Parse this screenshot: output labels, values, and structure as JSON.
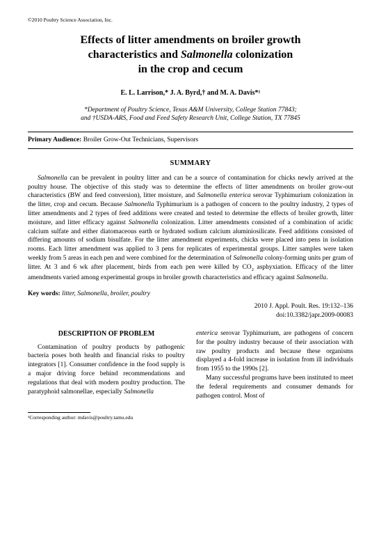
{
  "copyright": "©2010 Poultry Science Association, Inc.",
  "title_line1": "Effects of litter amendments on broiler growth",
  "title_line2a": "characteristics and ",
  "title_line2b": "Salmonella",
  "title_line2c": " colonization",
  "title_line3": "in the crop and cecum",
  "authors": "E. L. Larrison,* J. A. Byrd,† and M. A. Davis*¹",
  "affil_line1": "*Department of Poultry Science, Texas A&M University, College Station 77843;",
  "affil_line2": "and †USDA-ARS, Food and Feed Safety Research Unit, College Station, TX 77845",
  "audience_label": "Primary Audience:",
  "audience_value": " Broiler Grow-Out Technicians, Supervisors",
  "summary_heading": "SUMMARY",
  "summary_p1a": "Salmonella",
  "summary_p1b": " can be prevalent in poultry litter and can be a source of contamination for chicks newly arrived at the poultry house. The objective of this study was to determine the effects of litter amendments on broiler grow-out characteristics (BW and feed conversion), litter moisture, and ",
  "summary_p1c": "Salmonella enterica",
  "summary_p1d": " serovar Typhimurium colonization in the litter, crop and cecum. Because ",
  "summary_p1e": "Salmonella",
  "summary_p1f": " Typhimurium is a pathogen of concern to the poultry industry, 2 types of litter amendments and 2 types of feed additions were created and tested to determine the effects of broiler growth, litter moisture, and litter efficacy against ",
  "summary_p1g": "Salmonella",
  "summary_p1h": " colonization. Litter amendments consisted of a combination of acidic calcium sulfate and either diatomaceous earth or hydrated sodium calcium aluminiosilicate. Feed additions consisted of differing amounts of sodium bisulfate. For the litter amendment experiments, chicks were placed into pens in isolation rooms. Each litter amendment was applied to 3 pens for replicates of experimental groups. Litter samples were taken weekly from 5 areas in each pen and were combined for the determination of ",
  "summary_p1i": "Salmonella",
  "summary_p1j": " colony-forming units per gram of litter. At 3 and 6 wk after placement, birds from each pen were killed by CO",
  "summary_p1k": " asphyxiation. Efficacy of the litter amendments varied among experimental groups in broiler growth characteristics and efficacy against ",
  "summary_p1l": "Salmonella",
  "summary_p1m": ".",
  "keywords_label": "Key words:",
  "keywords_value": "  litter, Salmonella, broiler, poultry",
  "citation_line1": "2010 J. Appl. Poult. Res. 19:132–136",
  "citation_line2": "doi:10.3382/japr.2009-00083",
  "desc_heading": "DESCRIPTION OF PROBLEM",
  "col1_p1": "Contamination of poultry products by pathogenic bacteria poses both health and financial risks to poultry integrators [1]. Consumer confidence in the food supply is a major driving force behind recommendations and regulations that deal with modern poultry production. The paratyphoid salmonellae, especially ",
  "col1_p1b": "Salmonella",
  "col2_p1a": "enterica",
  "col2_p1b": " serovar Typhimurium, are pathogens of concern for the poultry industry because of their association with raw poultry products and because these organisms displayed a 4-fold increase in isolation from ill individuals from 1955 to the 1990s [2].",
  "col2_p2": "Many successful programs have been instituted to meet the federal requirements and consumer demands for pathogen control. Most of",
  "footnote": "¹Corresponding author: mdavis@poultry.tamu.edu"
}
